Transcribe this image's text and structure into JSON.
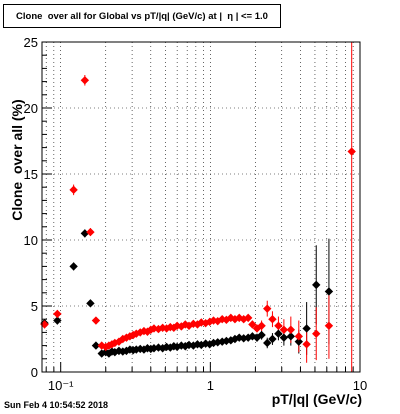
{
  "chart_data": {
    "type": "scatter",
    "title": "Clone  over all for Global vs pT/|q| (GeV/c) at |  η | <= 1.0",
    "xlabel": "pT/|q| (GeV/c)",
    "ylabel": "Clone  over all (%)",
    "x_scale": "log",
    "xlim": [
      0.075,
      10
    ],
    "ylim": [
      0,
      25
    ],
    "y_ticks": [
      0,
      5,
      10,
      15,
      20,
      25
    ],
    "x_tick_labels": [
      {
        "value": 0.1,
        "label": "10⁻¹"
      },
      {
        "value": 1,
        "label": "1"
      },
      {
        "value": 10,
        "label": "10"
      }
    ],
    "grid": true,
    "series": [
      {
        "color": "#000000",
        "points": [
          {
            "x": 0.078,
            "y": 3.7,
            "ex": 0.003,
            "ey": 0.3
          },
          {
            "x": 0.095,
            "y": 3.9,
            "ex": 0.004,
            "ey": 0.3
          },
          {
            "x": 0.122,
            "y": 8.0,
            "ex": 0.005,
            "ey": 0.3
          },
          {
            "x": 0.145,
            "y": 10.5,
            "ex": 0.005,
            "ey": 0.3
          },
          {
            "x": 0.158,
            "y": 5.2,
            "ex": 0.004,
            "ey": 0.2
          },
          {
            "x": 0.172,
            "y": 2.0,
            "ex": 0.004,
            "ey": 0.2
          },
          {
            "x": 0.188,
            "y": 1.4,
            "ex": 0.004,
            "ey": 0.15
          },
          {
            "x": 0.2,
            "y": 1.5
          },
          {
            "x": 0.21,
            "y": 1.4
          },
          {
            "x": 0.22,
            "y": 1.55
          },
          {
            "x": 0.23,
            "y": 1.5
          },
          {
            "x": 0.245,
            "y": 1.6
          },
          {
            "x": 0.26,
            "y": 1.55
          },
          {
            "x": 0.275,
            "y": 1.6
          },
          {
            "x": 0.29,
            "y": 1.7
          },
          {
            "x": 0.305,
            "y": 1.65
          },
          {
            "x": 0.32,
            "y": 1.7
          },
          {
            "x": 0.34,
            "y": 1.75
          },
          {
            "x": 0.36,
            "y": 1.7
          },
          {
            "x": 0.38,
            "y": 1.8
          },
          {
            "x": 0.4,
            "y": 1.75
          },
          {
            "x": 0.42,
            "y": 1.8
          },
          {
            "x": 0.45,
            "y": 1.85
          },
          {
            "x": 0.48,
            "y": 1.8
          },
          {
            "x": 0.51,
            "y": 1.9
          },
          {
            "x": 0.54,
            "y": 1.85
          },
          {
            "x": 0.57,
            "y": 1.95
          },
          {
            "x": 0.6,
            "y": 1.9
          },
          {
            "x": 0.64,
            "y": 2.0
          },
          {
            "x": 0.68,
            "y": 1.95
          },
          {
            "x": 0.72,
            "y": 2.05
          },
          {
            "x": 0.77,
            "y": 2.0
          },
          {
            "x": 0.82,
            "y": 2.1
          },
          {
            "x": 0.87,
            "y": 2.05
          },
          {
            "x": 0.93,
            "y": 2.15
          },
          {
            "x": 0.99,
            "y": 2.1
          },
          {
            "x": 1.05,
            "y": 2.2
          },
          {
            "x": 1.12,
            "y": 2.25
          },
          {
            "x": 1.2,
            "y": 2.3
          },
          {
            "x": 1.28,
            "y": 2.35
          },
          {
            "x": 1.37,
            "y": 2.4
          },
          {
            "x": 1.46,
            "y": 2.5
          },
          {
            "x": 1.56,
            "y": 2.6
          },
          {
            "x": 1.67,
            "y": 2.55
          },
          {
            "x": 1.79,
            "y": 2.6
          },
          {
            "x": 1.91,
            "y": 2.7
          },
          {
            "x": 2.05,
            "y": 2.6,
            "ey": 0.3
          },
          {
            "x": 2.2,
            "y": 2.8,
            "ey": 0.35
          },
          {
            "x": 2.4,
            "y": 2.2,
            "ey": 0.4
          },
          {
            "x": 2.6,
            "y": 2.5,
            "ey": 0.45
          },
          {
            "x": 2.85,
            "y": 2.9,
            "ey": 0.5
          },
          {
            "x": 3.1,
            "y": 2.6,
            "ey": 0.6
          },
          {
            "x": 3.45,
            "y": 2.7,
            "ey": 0.7
          },
          {
            "x": 3.9,
            "y": 2.3,
            "ey": 0.9
          },
          {
            "x": 4.4,
            "y": 3.3,
            "ey": 2.0
          },
          {
            "x": 5.1,
            "y": 6.6,
            "ey": 3.0
          },
          {
            "x": 6.2,
            "y": 6.1,
            "ey": 4.0
          }
        ]
      },
      {
        "color": "#ff0000",
        "points": [
          {
            "x": 0.078,
            "y": 3.6,
            "ex": 0.003,
            "ey": 0.3
          },
          {
            "x": 0.095,
            "y": 4.4,
            "ex": 0.006,
            "ey": 0.3
          },
          {
            "x": 0.122,
            "y": 13.8,
            "ex": 0.005,
            "ey": 0.4
          },
          {
            "x": 0.145,
            "y": 22.1,
            "ex": 0.004,
            "ey": 0.4
          },
          {
            "x": 0.158,
            "y": 10.6,
            "ex": 0.004,
            "ey": 0.3
          },
          {
            "x": 0.172,
            "y": 3.9,
            "ex": 0.004,
            "ey": 0.2
          },
          {
            "x": 0.188,
            "y": 2.0
          },
          {
            "x": 0.2,
            "y": 1.9
          },
          {
            "x": 0.21,
            "y": 2.0
          },
          {
            "x": 0.22,
            "y": 2.1
          },
          {
            "x": 0.23,
            "y": 2.2
          },
          {
            "x": 0.245,
            "y": 2.3
          },
          {
            "x": 0.26,
            "y": 2.5
          },
          {
            "x": 0.275,
            "y": 2.6
          },
          {
            "x": 0.29,
            "y": 2.7
          },
          {
            "x": 0.305,
            "y": 2.8
          },
          {
            "x": 0.32,
            "y": 2.9
          },
          {
            "x": 0.34,
            "y": 3.0
          },
          {
            "x": 0.36,
            "y": 3.1
          },
          {
            "x": 0.38,
            "y": 3.05
          },
          {
            "x": 0.4,
            "y": 3.2
          },
          {
            "x": 0.42,
            "y": 3.3
          },
          {
            "x": 0.45,
            "y": 3.25
          },
          {
            "x": 0.48,
            "y": 3.35
          },
          {
            "x": 0.51,
            "y": 3.3
          },
          {
            "x": 0.54,
            "y": 3.4
          },
          {
            "x": 0.57,
            "y": 3.35
          },
          {
            "x": 0.6,
            "y": 3.5
          },
          {
            "x": 0.64,
            "y": 3.45
          },
          {
            "x": 0.68,
            "y": 3.6
          },
          {
            "x": 0.72,
            "y": 3.5
          },
          {
            "x": 0.77,
            "y": 3.65
          },
          {
            "x": 0.82,
            "y": 3.6
          },
          {
            "x": 0.87,
            "y": 3.75
          },
          {
            "x": 0.93,
            "y": 3.7
          },
          {
            "x": 0.99,
            "y": 3.8
          },
          {
            "x": 1.05,
            "y": 3.9
          },
          {
            "x": 1.12,
            "y": 3.85
          },
          {
            "x": 1.2,
            "y": 4.0
          },
          {
            "x": 1.28,
            "y": 3.95
          },
          {
            "x": 1.37,
            "y": 4.1
          },
          {
            "x": 1.46,
            "y": 4.0
          },
          {
            "x": 1.56,
            "y": 4.1
          },
          {
            "x": 1.67,
            "y": 4.0
          },
          {
            "x": 1.79,
            "y": 4.1
          },
          {
            "x": 1.91,
            "y": 3.6,
            "ey": 0.3
          },
          {
            "x": 2.05,
            "y": 3.3,
            "ey": 0.3
          },
          {
            "x": 2.2,
            "y": 3.5,
            "ey": 0.4
          },
          {
            "x": 2.4,
            "y": 4.8,
            "ey": 0.6
          },
          {
            "x": 2.6,
            "y": 4.0,
            "ey": 0.6
          },
          {
            "x": 2.85,
            "y": 3.5,
            "ey": 0.7
          },
          {
            "x": 3.1,
            "y": 3.2,
            "ey": 0.8
          },
          {
            "x": 3.45,
            "y": 3.2,
            "ey": 1.0
          },
          {
            "x": 3.9,
            "y": 2.7,
            "ey": 1.2
          },
          {
            "x": 4.4,
            "y": 2.1,
            "ey": 1.4
          },
          {
            "x": 5.1,
            "y": 2.9,
            "ey": 2.0
          },
          {
            "x": 6.2,
            "y": 3.5,
            "ey": 2.5
          },
          {
            "x": 8.8,
            "y": 16.7,
            "ex": 0.3,
            "ey": 16.7
          }
        ]
      }
    ]
  },
  "footer": {
    "datestamp": "Sun Feb  4 10:54:52 2018"
  }
}
